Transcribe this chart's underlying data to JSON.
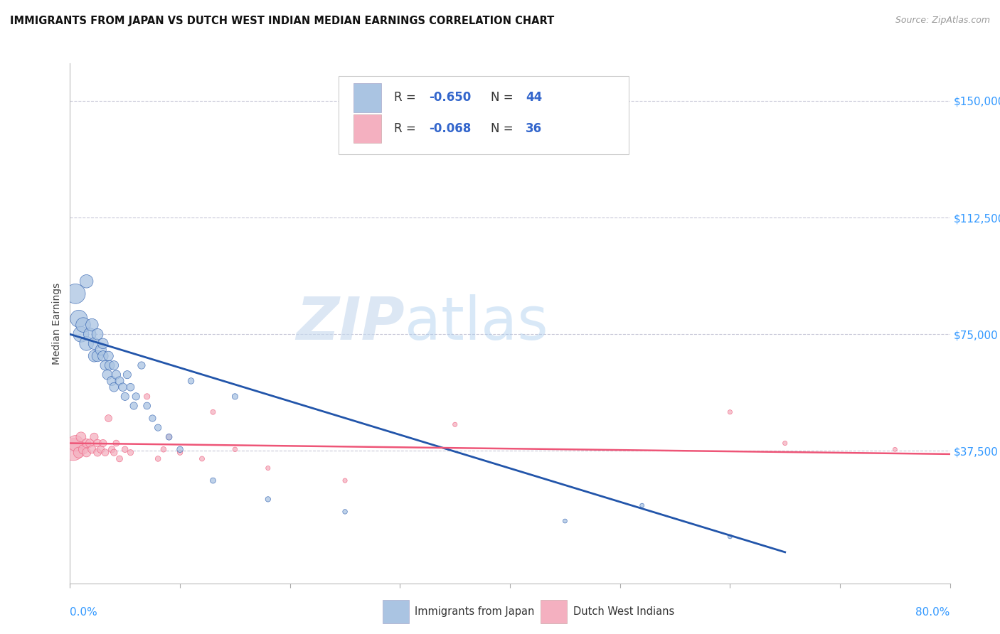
{
  "title": "IMMIGRANTS FROM JAPAN VS DUTCH WEST INDIAN MEDIAN EARNINGS CORRELATION CHART",
  "source": "Source: ZipAtlas.com",
  "ylabel": "Median Earnings",
  "yticks": [
    0,
    37500,
    75000,
    112500,
    150000
  ],
  "ytick_labels": [
    "",
    "$37,500",
    "$75,000",
    "$112,500",
    "$150,000"
  ],
  "ylim": [
    -5000,
    162000
  ],
  "xlim": [
    0,
    0.8
  ],
  "color_japan": "#aac4e2",
  "color_dwi": "#f4b0c0",
  "color_japan_line": "#2255aa",
  "color_dwi_line": "#ee5577",
  "watermark_zip": "ZIP",
  "watermark_atlas": "atlas",
  "japan_x": [
    0.005,
    0.008,
    0.01,
    0.012,
    0.015,
    0.015,
    0.018,
    0.02,
    0.022,
    0.022,
    0.025,
    0.025,
    0.028,
    0.03,
    0.03,
    0.032,
    0.034,
    0.035,
    0.036,
    0.038,
    0.04,
    0.04,
    0.042,
    0.045,
    0.048,
    0.05,
    0.052,
    0.055,
    0.058,
    0.06,
    0.065,
    0.07,
    0.075,
    0.08,
    0.09,
    0.1,
    0.11,
    0.13,
    0.15,
    0.18,
    0.25,
    0.45,
    0.52,
    0.6
  ],
  "japan_y": [
    88000,
    80000,
    75000,
    78000,
    72000,
    92000,
    75000,
    78000,
    72000,
    68000,
    75000,
    68000,
    70000,
    68000,
    72000,
    65000,
    62000,
    68000,
    65000,
    60000,
    58000,
    65000,
    62000,
    60000,
    58000,
    55000,
    62000,
    58000,
    52000,
    55000,
    65000,
    52000,
    48000,
    45000,
    42000,
    38000,
    60000,
    28000,
    55000,
    22000,
    18000,
    15000,
    20000,
    10000
  ],
  "dwi_x": [
    0.003,
    0.005,
    0.008,
    0.01,
    0.012,
    0.015,
    0.015,
    0.018,
    0.02,
    0.022,
    0.025,
    0.025,
    0.028,
    0.03,
    0.032,
    0.035,
    0.038,
    0.04,
    0.042,
    0.045,
    0.05,
    0.055,
    0.07,
    0.08,
    0.085,
    0.09,
    0.1,
    0.12,
    0.13,
    0.15,
    0.18,
    0.25,
    0.35,
    0.6,
    0.65,
    0.75
  ],
  "dwi_y": [
    38000,
    40000,
    37000,
    42000,
    38000,
    40000,
    37000,
    40000,
    38000,
    42000,
    37000,
    40000,
    38000,
    40000,
    37000,
    48000,
    38000,
    37000,
    40000,
    35000,
    38000,
    37000,
    55000,
    35000,
    38000,
    42000,
    37000,
    35000,
    50000,
    38000,
    32000,
    28000,
    46000,
    50000,
    40000,
    38000
  ],
  "japan_sizes": [
    400,
    300,
    250,
    220,
    200,
    180,
    160,
    160,
    140,
    140,
    130,
    130,
    120,
    110,
    110,
    100,
    100,
    95,
    95,
    90,
    85,
    85,
    80,
    75,
    70,
    65,
    65,
    60,
    55,
    55,
    55,
    50,
    45,
    45,
    40,
    38,
    38,
    32,
    35,
    28,
    22,
    18,
    18,
    18
  ],
  "dwi_sizes": [
    500,
    250,
    120,
    100,
    90,
    80,
    80,
    70,
    65,
    65,
    60,
    60,
    55,
    55,
    50,
    50,
    45,
    45,
    40,
    40,
    38,
    35,
    35,
    30,
    30,
    28,
    28,
    25,
    25,
    22,
    20,
    20,
    20,
    20,
    20,
    18
  ],
  "japan_trend_x0": 0.0,
  "japan_trend_x1": 0.65,
  "japan_trend_y0": 75000,
  "japan_trend_y1": 5000,
  "dwi_trend_x0": 0.0,
  "dwi_trend_x1": 0.8,
  "dwi_trend_y0": 40000,
  "dwi_trend_y1": 36500
}
